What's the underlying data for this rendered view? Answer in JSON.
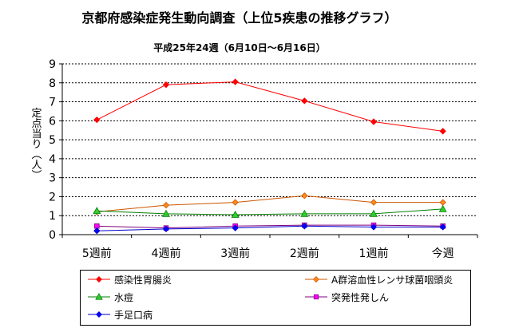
{
  "chart_data": {
    "type": "line",
    "title": "京都府感染症発生動向調査（上位5疾患の推移グラフ）",
    "subtitle": "平成25年24週（6月10日～6月16日）",
    "xlabel": "",
    "ylabel": "定点当り（人）",
    "categories": [
      "5週前",
      "4週前",
      "3週前",
      "2週前",
      "1週前",
      "今週"
    ],
    "ylim": [
      0,
      9
    ],
    "yticks": [
      "0",
      "1",
      "2",
      "3",
      "4",
      "5",
      "6",
      "7",
      "8",
      "9"
    ],
    "grid": true,
    "legend_position": "bottom",
    "series": [
      {
        "name": "感染性胃腸炎",
        "values": [
          6.05,
          7.9,
          8.05,
          7.05,
          5.95,
          5.45
        ],
        "color": "#ff0000",
        "marker": "diamond",
        "marker_fill": "#ff0000"
      },
      {
        "name": "A群溶血性レンサ球菌咽頭炎",
        "values": [
          1.2,
          1.55,
          1.7,
          2.05,
          1.7,
          1.7
        ],
        "color": "#cc5500",
        "marker": "diamond",
        "marker_fill": "#ff8c1a"
      },
      {
        "name": "水痘",
        "values": [
          1.25,
          1.1,
          1.05,
          1.1,
          1.1,
          1.35
        ],
        "color": "#008000",
        "marker": "triangle",
        "marker_fill": "#33cc33"
      },
      {
        "name": "突発性発しん",
        "values": [
          0.45,
          0.35,
          0.45,
          0.5,
          0.5,
          0.45
        ],
        "color": "#800080",
        "marker": "square",
        "marker_fill": "#ff00ff"
      },
      {
        "name": "手足口病",
        "values": [
          0.2,
          0.3,
          0.35,
          0.45,
          0.4,
          0.4
        ],
        "color": "#0000cc",
        "marker": "diamond",
        "marker_fill": "#0000ff"
      }
    ]
  }
}
